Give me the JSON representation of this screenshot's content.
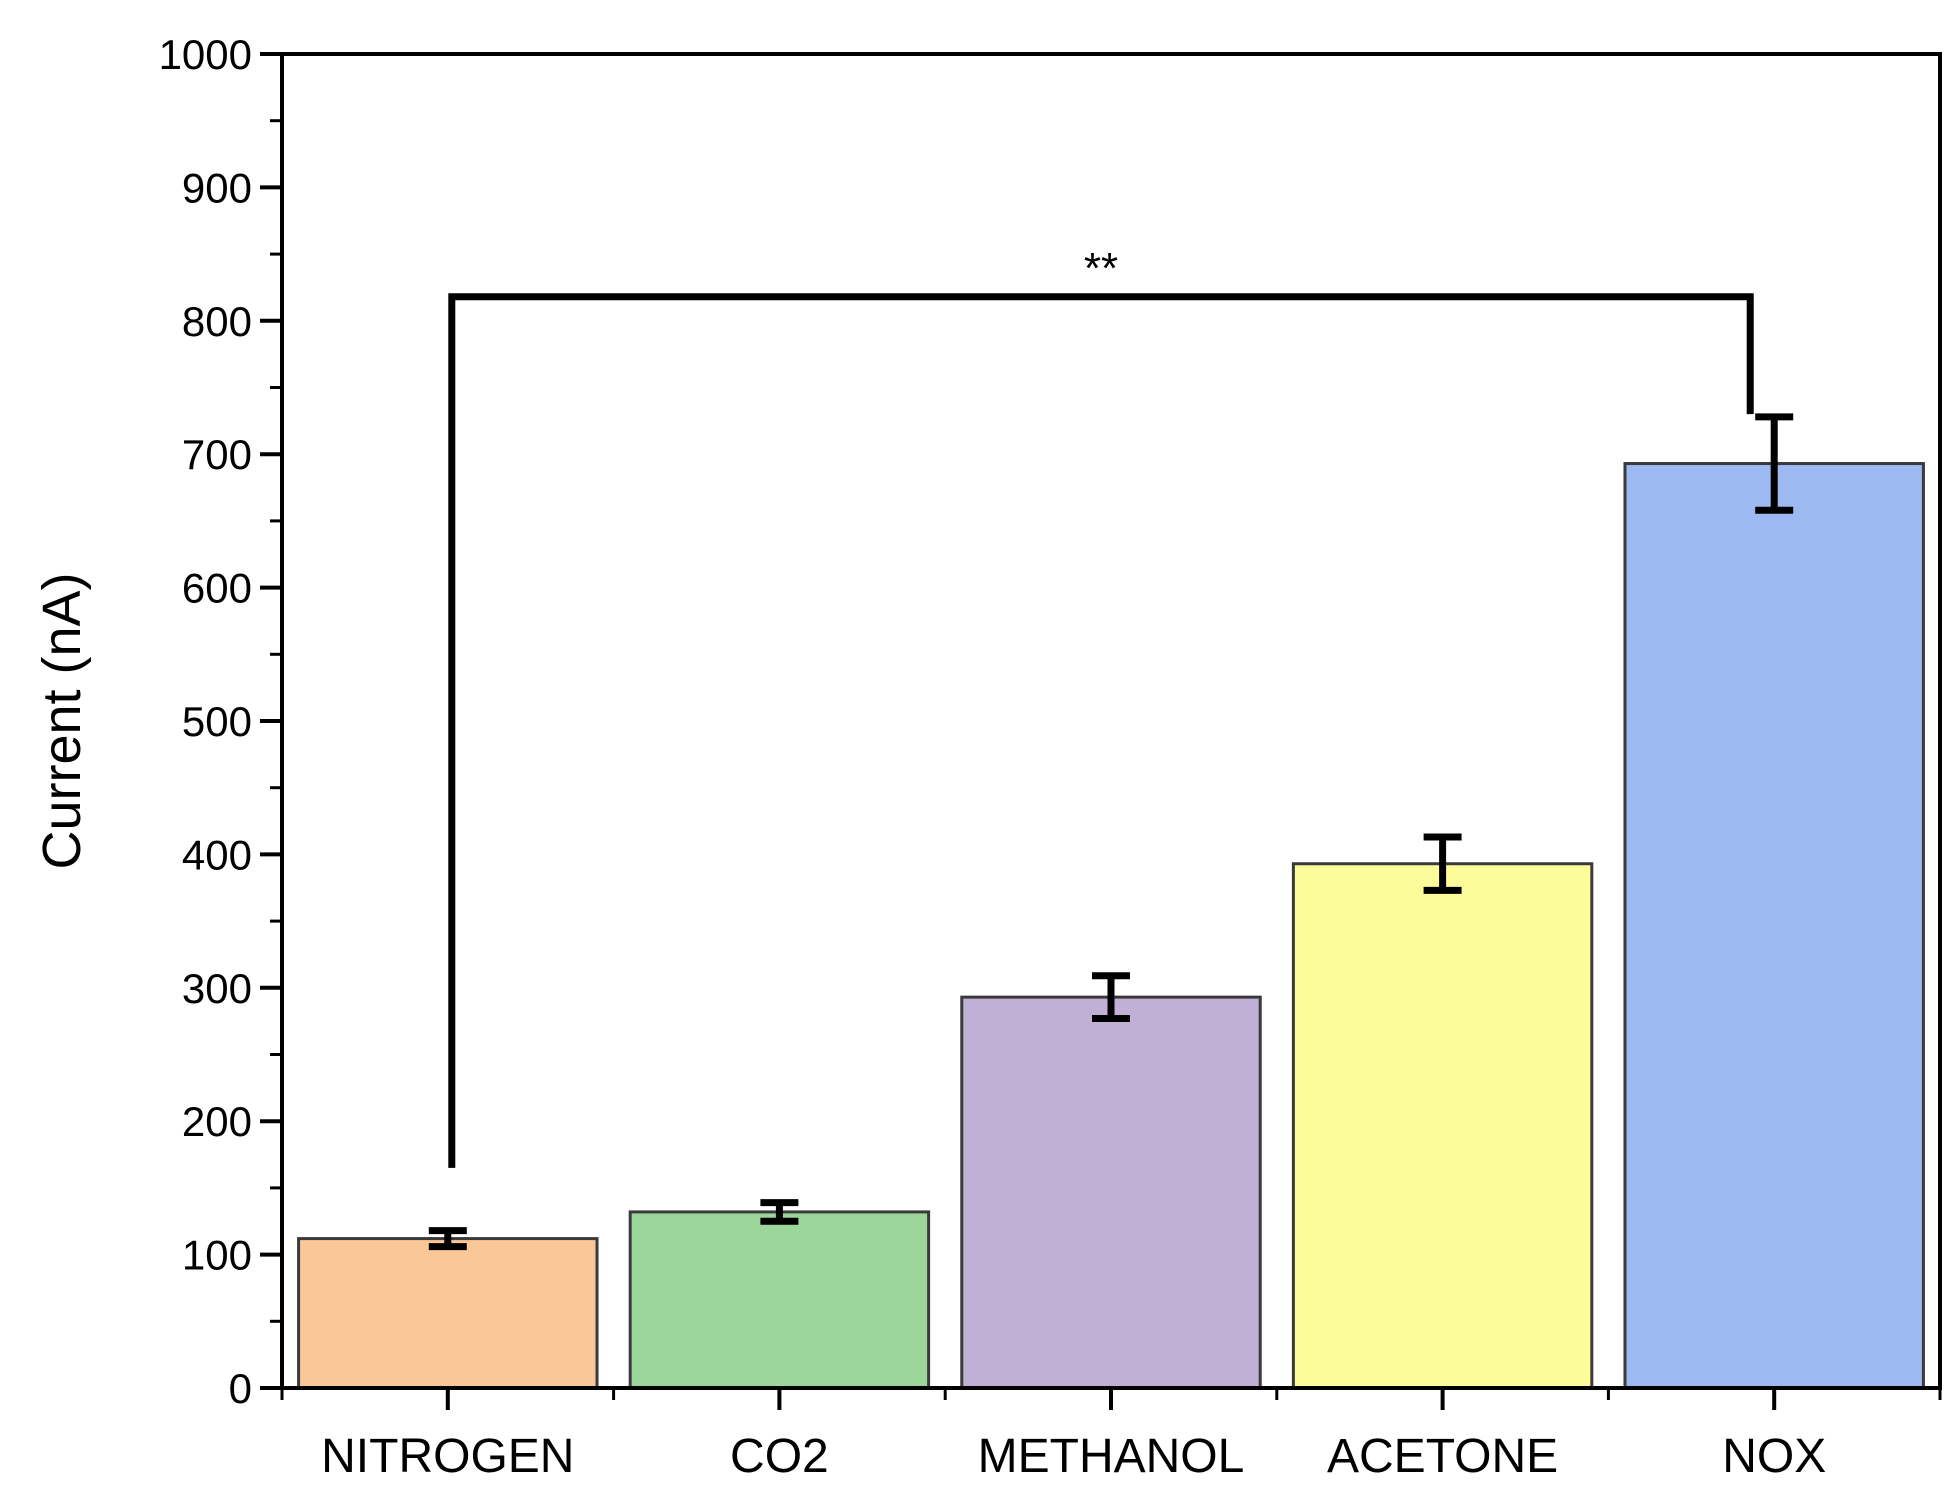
{
  "chart_data": {
    "type": "bar",
    "ylabel": "Current (nA)",
    "xlabel": "",
    "ylim": [
      0,
      1000
    ],
    "yticks": [
      0,
      100,
      200,
      300,
      400,
      500,
      600,
      700,
      800,
      900,
      1000
    ],
    "categories": [
      "NITROGEN",
      "CO2",
      "METHANOL",
      "ACETONE",
      "NOX"
    ],
    "values": [
      112,
      132,
      293,
      393,
      693
    ],
    "errors": [
      6,
      7,
      16,
      20,
      35
    ],
    "bar_colors": [
      "#f9c896",
      "#9dd69b",
      "#c1b0d6",
      "#fdfc9b",
      "#9cbaf1"
    ],
    "significance": {
      "label": "**",
      "from_category": "NITROGEN",
      "to_category": "NOX",
      "bracket_level": 818,
      "left_end": 165,
      "right_end": 730
    },
    "grid": false,
    "legend": "none"
  }
}
